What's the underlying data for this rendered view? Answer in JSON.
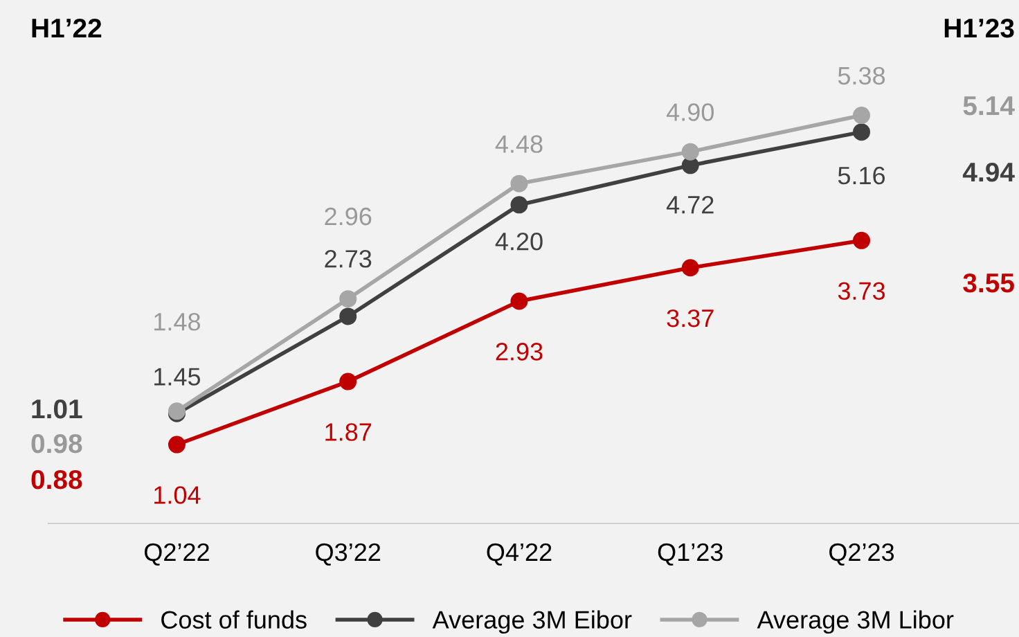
{
  "chart_data": {
    "type": "line",
    "categories": [
      "Q2’22",
      "Q3’22",
      "Q4’22",
      "Q1’23",
      "Q2’23"
    ],
    "series": [
      {
        "name": "Cost of funds",
        "color": "#c00000",
        "values": [
          1.04,
          1.87,
          2.93,
          3.37,
          3.73
        ],
        "value_labels": [
          "1.04",
          "1.87",
          "2.93",
          "3.37",
          "3.73"
        ]
      },
      {
        "name": "Average 3M Eibor",
        "color": "#404040",
        "values": [
          1.45,
          2.73,
          4.2,
          4.72,
          5.16
        ],
        "value_labels": [
          "1.45",
          "2.73",
          "4.20",
          "4.72",
          "5.16"
        ]
      },
      {
        "name": "Average 3M Libor",
        "color": "#a6a6a6",
        "values": [
          1.48,
          2.96,
          4.48,
          4.9,
          5.38
        ],
        "value_labels": [
          "1.48",
          "2.96",
          "4.48",
          "4.90",
          "5.38"
        ]
      }
    ],
    "ylim": [
      0,
      6.9
    ],
    "tick_labels": "x",
    "marker": "circle",
    "line_style": "solid",
    "grid": false,
    "legend": "bottom",
    "annotations": [
      "H1’22",
      "1.01",
      "0.98",
      "0.88",
      "H1’23",
      "5.14",
      "4.94",
      "3.55"
    ]
  }
}
